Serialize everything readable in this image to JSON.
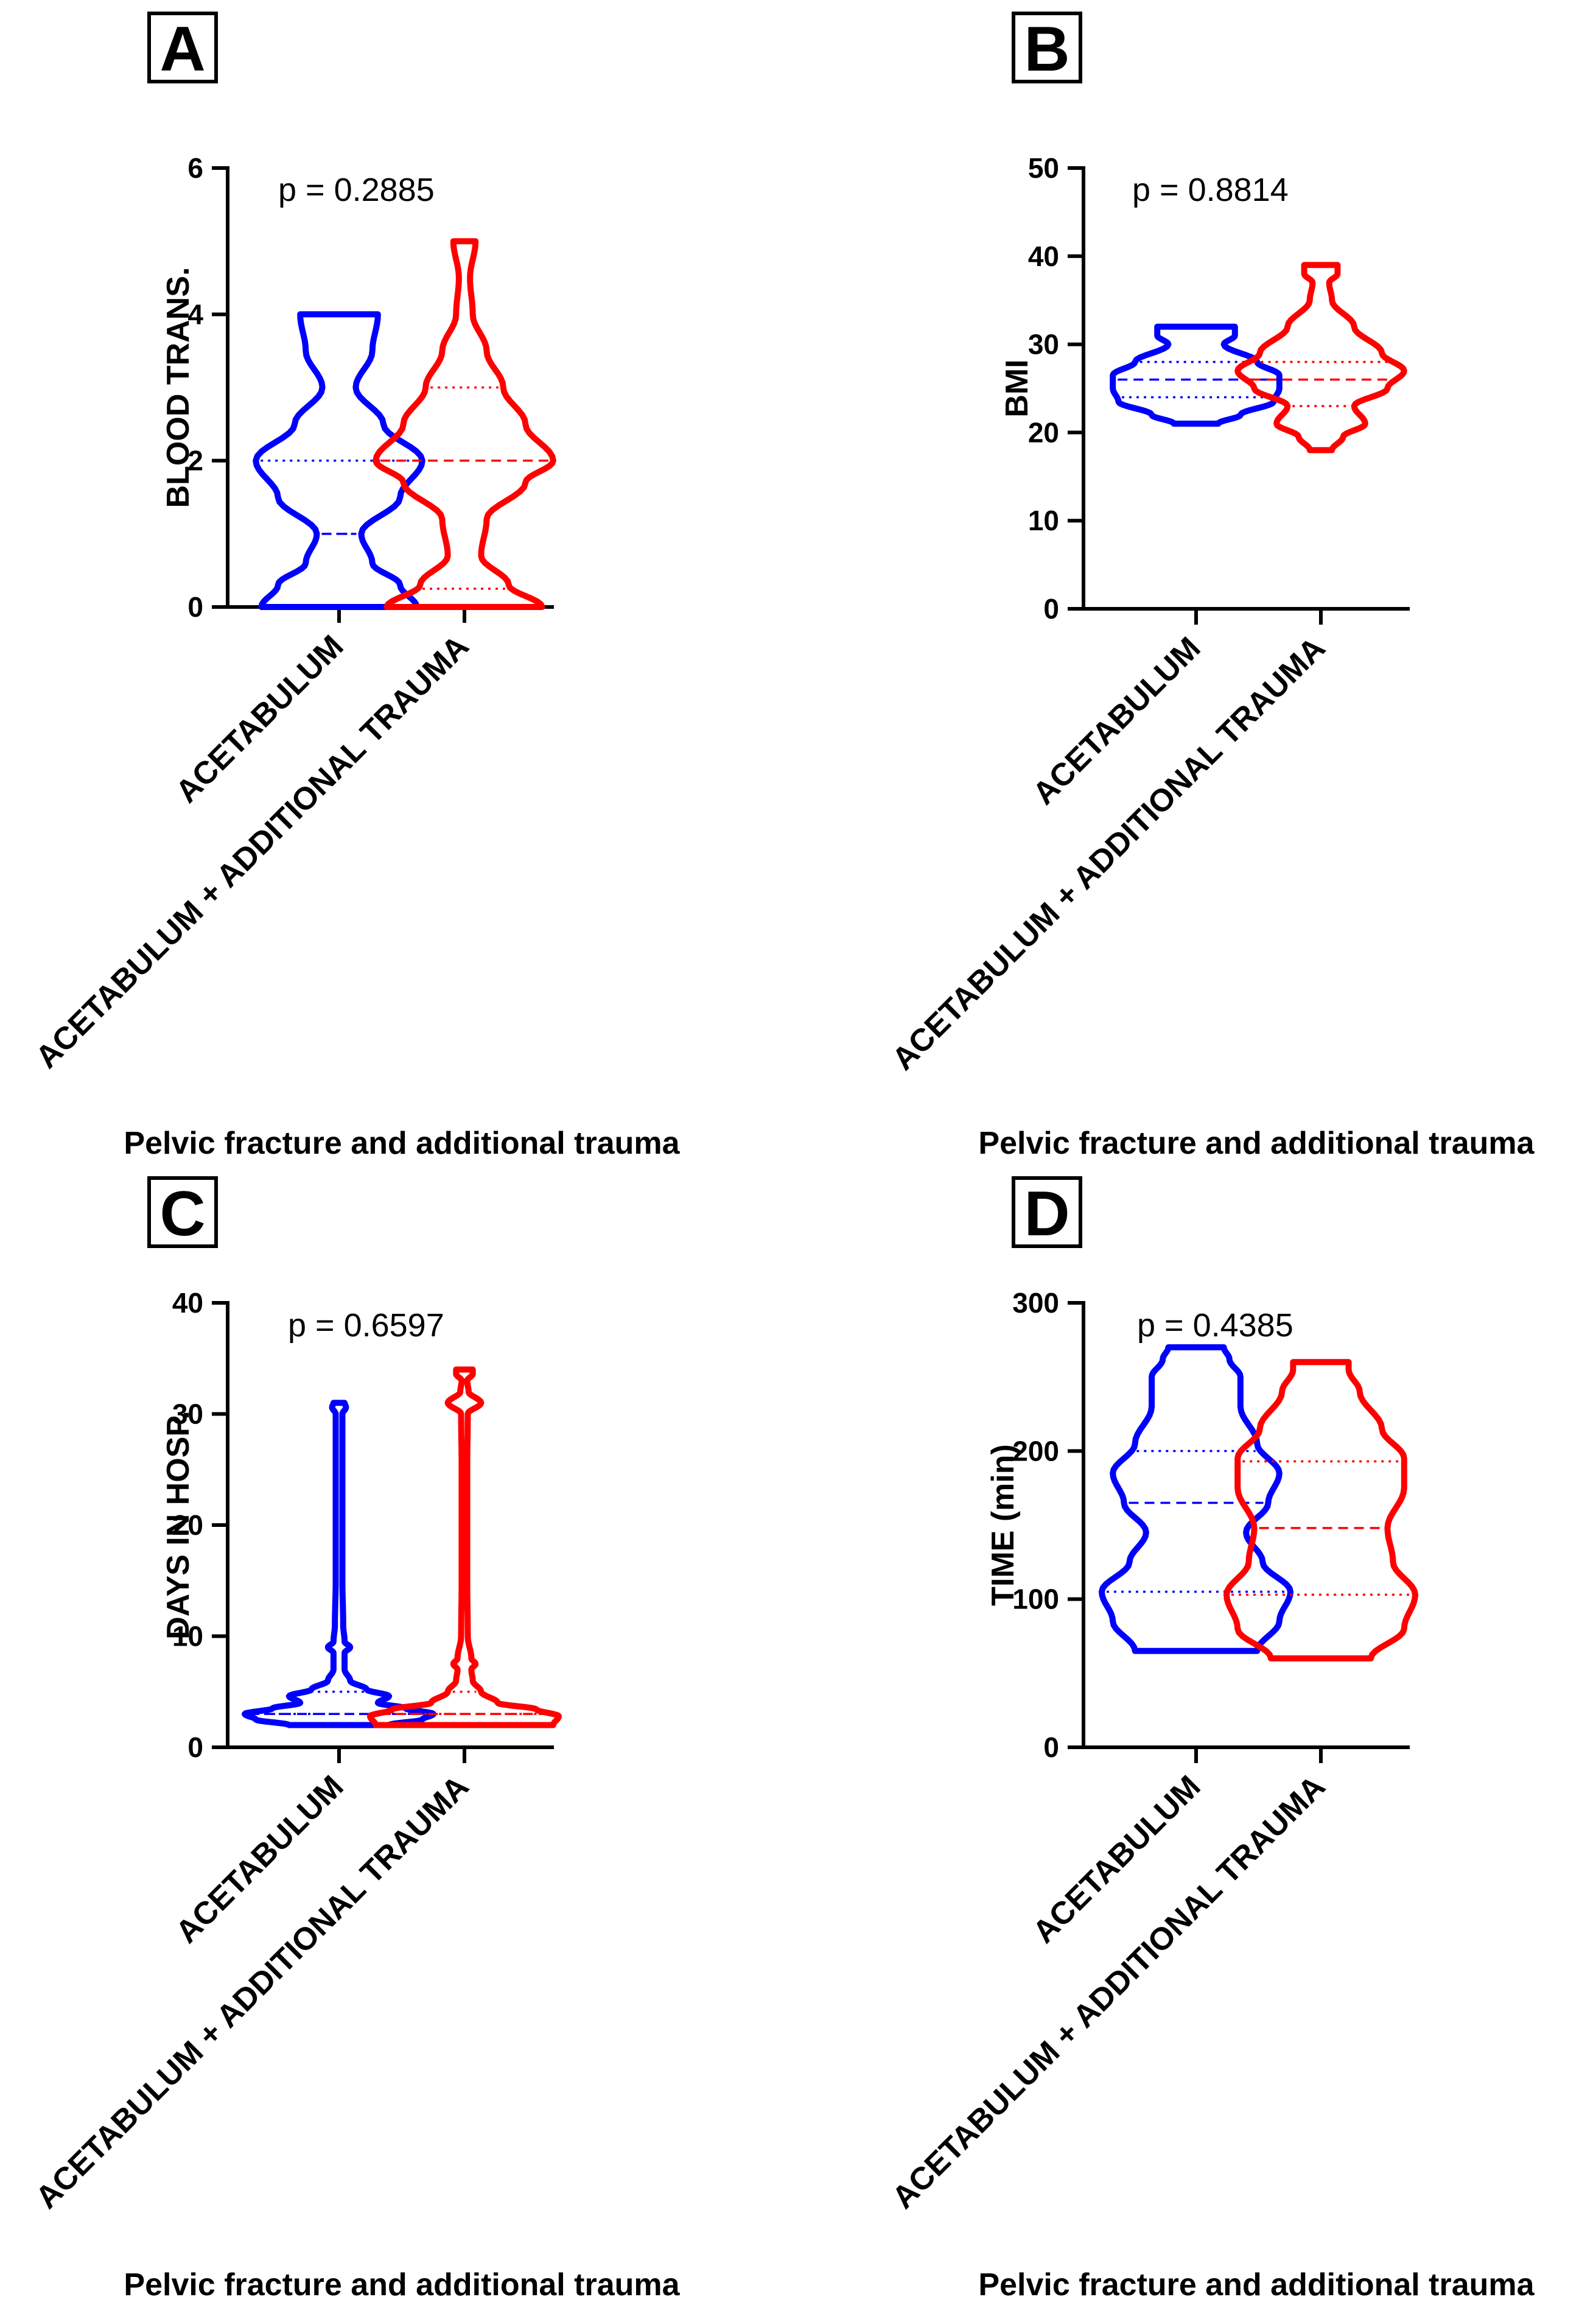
{
  "figure": {
    "colors": {
      "acetabulum": "#0000ff",
      "additional": "#ff0000",
      "axis": "#000000"
    }
  },
  "chart_data": [
    {
      "panel": "A",
      "type": "violin",
      "annotation": "p = 0.2885",
      "ylabel": "BLOOD TRANS.",
      "xlabel": "Pelvic fracture and additional trauma",
      "ylim": [
        0,
        6
      ],
      "yticks": [
        "0",
        "2",
        "4",
        "6"
      ],
      "categories": [
        "ACETABULUM",
        "ACETABULUM + ADDITIONAL TRAUMA"
      ],
      "series": [
        {
          "name": "ACETABULUM",
          "color": "#0000ff",
          "min": 0,
          "max": 4,
          "q1": 1,
          "median": 1,
          "q3": 2,
          "profile": [
            [
              0,
              0.28
            ],
            [
              0.3,
              0.22
            ],
            [
              0.6,
              0.12
            ],
            [
              1.0,
              0.08
            ],
            [
              1.5,
              0.22
            ],
            [
              2.0,
              0.3
            ],
            [
              2.5,
              0.16
            ],
            [
              3.0,
              0.06
            ],
            [
              3.5,
              0.12
            ],
            [
              4.0,
              0.14
            ]
          ]
        },
        {
          "name": "ACETABULUM + ADDITIONAL TRAUMA",
          "color": "#ff0000",
          "min": 0,
          "max": 5,
          "q1": 0.25,
          "median": 2,
          "q3": 3,
          "profile": [
            [
              0,
              0.28
            ],
            [
              0.3,
              0.16
            ],
            [
              0.7,
              0.06
            ],
            [
              1.2,
              0.08
            ],
            [
              1.7,
              0.22
            ],
            [
              2.0,
              0.32
            ],
            [
              2.5,
              0.22
            ],
            [
              3.0,
              0.14
            ],
            [
              3.5,
              0.08
            ],
            [
              4.0,
              0.03
            ],
            [
              4.5,
              0.02
            ],
            [
              5.0,
              0.04
            ]
          ]
        }
      ]
    },
    {
      "panel": "B",
      "type": "violin",
      "annotation": "p = 0.8814",
      "ylabel": "BMI",
      "xlabel": "Pelvic fracture and additional trauma",
      "ylim": [
        0,
        50
      ],
      "yticks": [
        "0",
        "10",
        "20",
        "30",
        "40",
        "50"
      ],
      "categories": [
        "ACETABULUM",
        "ACETABULUM + ADDITIONAL TRAUMA"
      ],
      "series": [
        {
          "name": "ACETABULUM",
          "color": "#0000ff",
          "min": 21,
          "max": 32,
          "q1": 24,
          "median": 26,
          "q3": 28,
          "profile": [
            [
              21,
              0.08
            ],
            [
              22,
              0.16
            ],
            [
              23.5,
              0.28
            ],
            [
              25,
              0.3
            ],
            [
              26.5,
              0.3
            ],
            [
              28,
              0.22
            ],
            [
              30,
              0.1
            ],
            [
              31,
              0.14
            ],
            [
              32,
              0.14
            ]
          ]
        },
        {
          "name": "ACETABULUM + ADDITIONAL TRAUMA",
          "color": "#ff0000",
          "min": 18,
          "max": 39,
          "q1": 23,
          "median": 26,
          "q3": 28,
          "profile": [
            [
              18,
              0.04
            ],
            [
              19.5,
              0.08
            ],
            [
              21,
              0.16
            ],
            [
              23,
              0.12
            ],
            [
              25,
              0.24
            ],
            [
              27,
              0.3
            ],
            [
              29,
              0.22
            ],
            [
              32,
              0.12
            ],
            [
              35,
              0.04
            ],
            [
              37,
              0.03
            ],
            [
              38,
              0.06
            ],
            [
              39,
              0.06
            ]
          ]
        }
      ]
    },
    {
      "panel": "C",
      "type": "violin",
      "annotation": "p = 0.6597",
      "ylabel": "DAYS IN HOSP.",
      "xlabel": "Pelvic fracture and additional trauma",
      "ylim": [
        0,
        40
      ],
      "yticks": [
        "0",
        "10",
        "20",
        "30",
        "40"
      ],
      "categories": [
        "ACETABULUM",
        "ACETABULUM + ADDITIONAL TRAUMA"
      ],
      "series": [
        {
          "name": "ACETABULUM",
          "color": "#0000ff",
          "min": 2,
          "max": 31,
          "q1": 3,
          "median": 3,
          "q3": 5,
          "profile": [
            [
              2,
              0.18
            ],
            [
              2.5,
              0.3
            ],
            [
              3,
              0.34
            ],
            [
              3.5,
              0.24
            ],
            [
              4,
              0.14
            ],
            [
              4.6,
              0.18
            ],
            [
              5.2,
              0.1
            ],
            [
              6,
              0.04
            ],
            [
              7,
              0.02
            ],
            [
              8.5,
              0.02
            ],
            [
              9,
              0.04
            ],
            [
              9.5,
              0.02
            ],
            [
              11,
              0.015
            ],
            [
              15,
              0.012
            ],
            [
              20,
              0.012
            ],
            [
              25,
              0.012
            ],
            [
              30,
              0.012
            ],
            [
              30.6,
              0.025
            ],
            [
              31,
              0.02
            ]
          ]
        },
        {
          "name": "ACETABULUM + ADDITIONAL TRAUMA",
          "color": "#ff0000",
          "min": 2,
          "max": 34,
          "q1": 3,
          "median": 3,
          "q3": 5,
          "profile": [
            [
              2,
              0.32
            ],
            [
              2.8,
              0.34
            ],
            [
              3.4,
              0.26
            ],
            [
              4,
              0.12
            ],
            [
              5,
              0.06
            ],
            [
              6,
              0.03
            ],
            [
              7,
              0.025
            ],
            [
              7.5,
              0.04
            ],
            [
              8,
              0.025
            ],
            [
              10,
              0.012
            ],
            [
              15,
              0.01
            ],
            [
              20,
              0.01
            ],
            [
              25,
              0.01
            ],
            [
              30,
              0.012
            ],
            [
              31,
              0.06
            ],
            [
              32,
              0.015
            ],
            [
              33,
              0.01
            ],
            [
              33.6,
              0.03
            ],
            [
              34,
              0.03
            ]
          ]
        }
      ]
    },
    {
      "panel": "D",
      "type": "violin",
      "annotation": "p = 0.4385",
      "ylabel": "TIME (min)",
      "xlabel": "Pelvic fracture and additional trauma",
      "ylim": [
        0,
        300
      ],
      "yticks": [
        "0",
        "100",
        "200",
        "300"
      ],
      "categories": [
        "ACETABULUM",
        "ACETABULUM + ADDITIONAL TRAUMA"
      ],
      "series": [
        {
          "name": "ACETABULUM",
          "color": "#0000ff",
          "min": 65,
          "max": 270,
          "q1": 105,
          "median": 165,
          "q3": 200,
          "profile": [
            [
              65,
              0.22
            ],
            [
              85,
              0.3
            ],
            [
              105,
              0.34
            ],
            [
              125,
              0.24
            ],
            [
              145,
              0.18
            ],
            [
              165,
              0.26
            ],
            [
              185,
              0.3
            ],
            [
              205,
              0.22
            ],
            [
              230,
              0.16
            ],
            [
              250,
              0.16
            ],
            [
              262,
              0.12
            ],
            [
              270,
              0.1
            ]
          ]
        },
        {
          "name": "ACETABULUM + ADDITIONAL TRAUMA",
          "color": "#ff0000",
          "min": 60,
          "max": 260,
          "q1": 103,
          "median": 148,
          "q3": 193,
          "profile": [
            [
              60,
              0.18
            ],
            [
              80,
              0.3
            ],
            [
              103,
              0.34
            ],
            [
              125,
              0.26
            ],
            [
              148,
              0.24
            ],
            [
              175,
              0.3
            ],
            [
              195,
              0.3
            ],
            [
              215,
              0.22
            ],
            [
              240,
              0.14
            ],
            [
              255,
              0.1
            ],
            [
              260,
              0.1
            ]
          ]
        }
      ]
    }
  ]
}
